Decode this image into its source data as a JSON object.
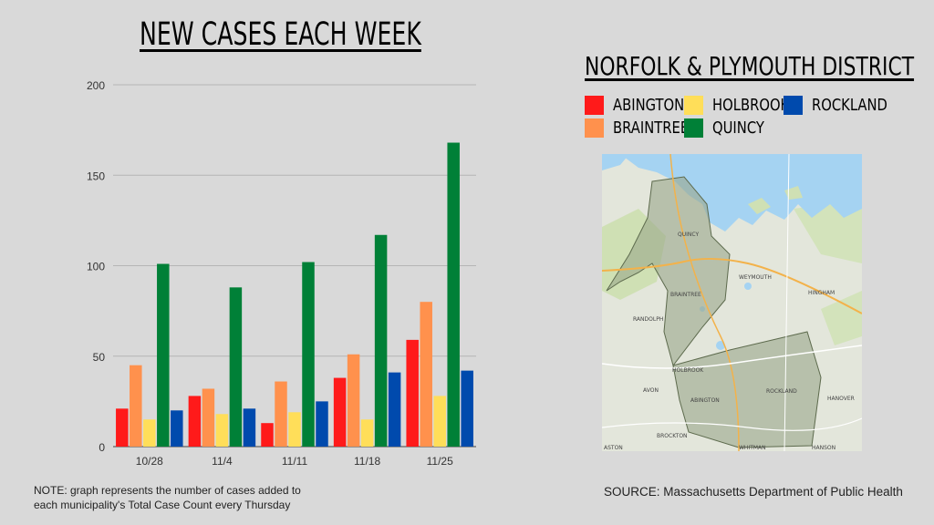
{
  "title": "NEW CASES EACH WEEK",
  "legend_title": "NORFOLK & PLYMOUTH DISTRICT",
  "note": "NOTE: graph represents the number of cases added to each municipality's Total Case Count every Thursday",
  "source": "SOURCE: Massachusetts Department of Public Health",
  "map_labels": {
    "quincy": "QUINCY",
    "weymouth": "WEYMOUTH",
    "braintree": "BRAINTREE",
    "randolph": "RANDOLPH",
    "holbrook": "HOLBROOK",
    "abington": "ABINGTON",
    "rockland": "ROCKLAND",
    "avon": "AVON",
    "brockton": "BROCKTON",
    "whitman": "WHITMAN",
    "hanson": "HANSON",
    "hanover": "HANOVER",
    "hingham": "HINGHAM",
    "easton": "ASTON"
  },
  "chart_data": {
    "type": "bar",
    "title": "NEW CASES EACH WEEK",
    "categories": [
      "10/28",
      "11/4",
      "11/11",
      "11/18",
      "11/25"
    ],
    "series": [
      {
        "name": "ABINGTON",
        "color": "#ff1a1a",
        "values": [
          21,
          28,
          13,
          38,
          59
        ]
      },
      {
        "name": "BRAINTREE",
        "color": "#ff914d",
        "values": [
          45,
          32,
          36,
          51,
          80
        ]
      },
      {
        "name": "HOLBROOK",
        "color": "#ffde59",
        "values": [
          15,
          18,
          19,
          15,
          28
        ]
      },
      {
        "name": "QUINCY",
        "color": "#008037",
        "values": [
          101,
          88,
          102,
          117,
          168
        ]
      },
      {
        "name": "ROCKLAND",
        "color": "#004aad",
        "values": [
          20,
          21,
          25,
          41,
          42
        ]
      }
    ],
    "ylim": [
      0,
      200
    ],
    "yticks": [
      0,
      50,
      100,
      150,
      200
    ],
    "grid": true,
    "legend_position": "right"
  }
}
